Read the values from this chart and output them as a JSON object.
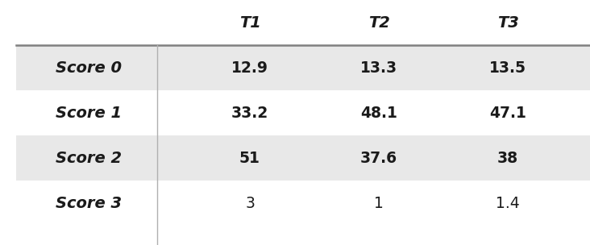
{
  "col_headers": [
    "T1",
    "T2",
    "T3"
  ],
  "row_headers": [
    "Score 0",
    "Score 1",
    "Score 2",
    "Score 3"
  ],
  "cell_data": [
    [
      "12.9",
      "13.3",
      "13.5"
    ],
    [
      "33.2",
      "48.1",
      "47.1"
    ],
    [
      "51",
      "37.6",
      "38"
    ],
    [
      "3",
      "1",
      "1.4"
    ]
  ],
  "shaded_rows": [
    0,
    2
  ],
  "shaded_color": "#e8e8e8",
  "bg_color": "#ffffff",
  "header_line_color": "#808080",
  "divider_line_color": "#b0b0b0",
  "col_header_fontsize": 14,
  "row_header_fontsize": 14,
  "cell_fontsize": 13.5,
  "figsize": [
    7.32,
    3.04
  ],
  "dpi": 100
}
